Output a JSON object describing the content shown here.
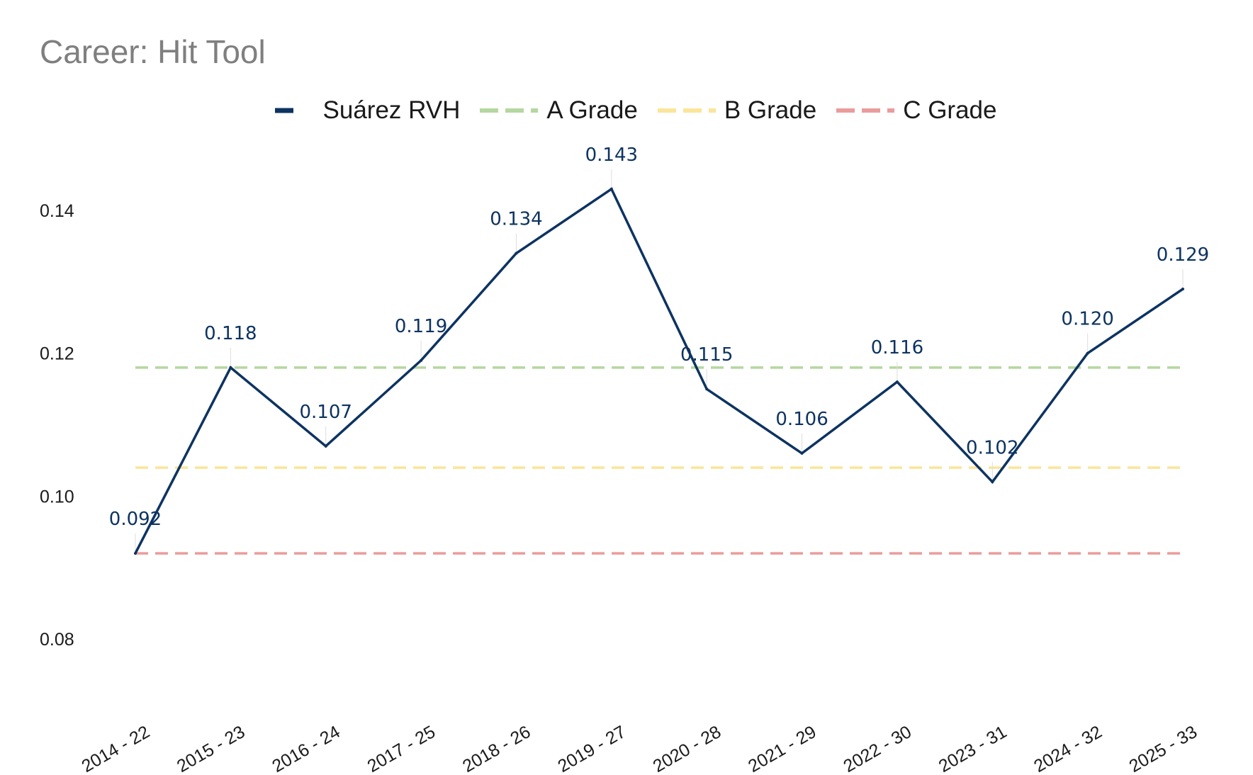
{
  "chart_data": {
    "type": "line",
    "title": "Career: Hit Tool",
    "categories": [
      "2014 - 22",
      "2015 - 23",
      "2016 - 24",
      "2017 - 25",
      "2018 - 26",
      "2019 - 27",
      "2020 - 28",
      "2021 - 29",
      "2022 - 30",
      "2023 - 31",
      "2024 - 32",
      "2025 - 33"
    ],
    "series": [
      {
        "name": "Suárez RVH",
        "values": [
          0.092,
          0.118,
          0.107,
          0.119,
          0.134,
          0.143,
          0.115,
          0.106,
          0.116,
          0.102,
          0.12,
          0.129
        ],
        "color": "#0d3361",
        "style": "solid"
      }
    ],
    "reference_lines": [
      {
        "name": "A Grade",
        "value": 0.118,
        "color": "#b5d7a0",
        "style": "dashed"
      },
      {
        "name": "B Grade",
        "value": 0.104,
        "color": "#fbe59a",
        "style": "dashed"
      },
      {
        "name": "C Grade",
        "value": 0.092,
        "color": "#ea9c9c",
        "style": "dashed"
      }
    ],
    "data_labels": [
      "0.092",
      "0.118",
      "0.107",
      "0.119",
      "0.134",
      "0.143",
      "0.115",
      "0.106",
      "0.116",
      "0.102",
      "0.120",
      "0.129"
    ],
    "ylim": [
      0.07,
      0.152
    ],
    "yticks": [
      0.08,
      0.1,
      0.12,
      0.14
    ],
    "ytick_labels": [
      "0.08",
      "0.10",
      "0.12",
      "0.14"
    ],
    "grid": false,
    "legend_position": "top-center",
    "xlabel": "",
    "ylabel": ""
  }
}
